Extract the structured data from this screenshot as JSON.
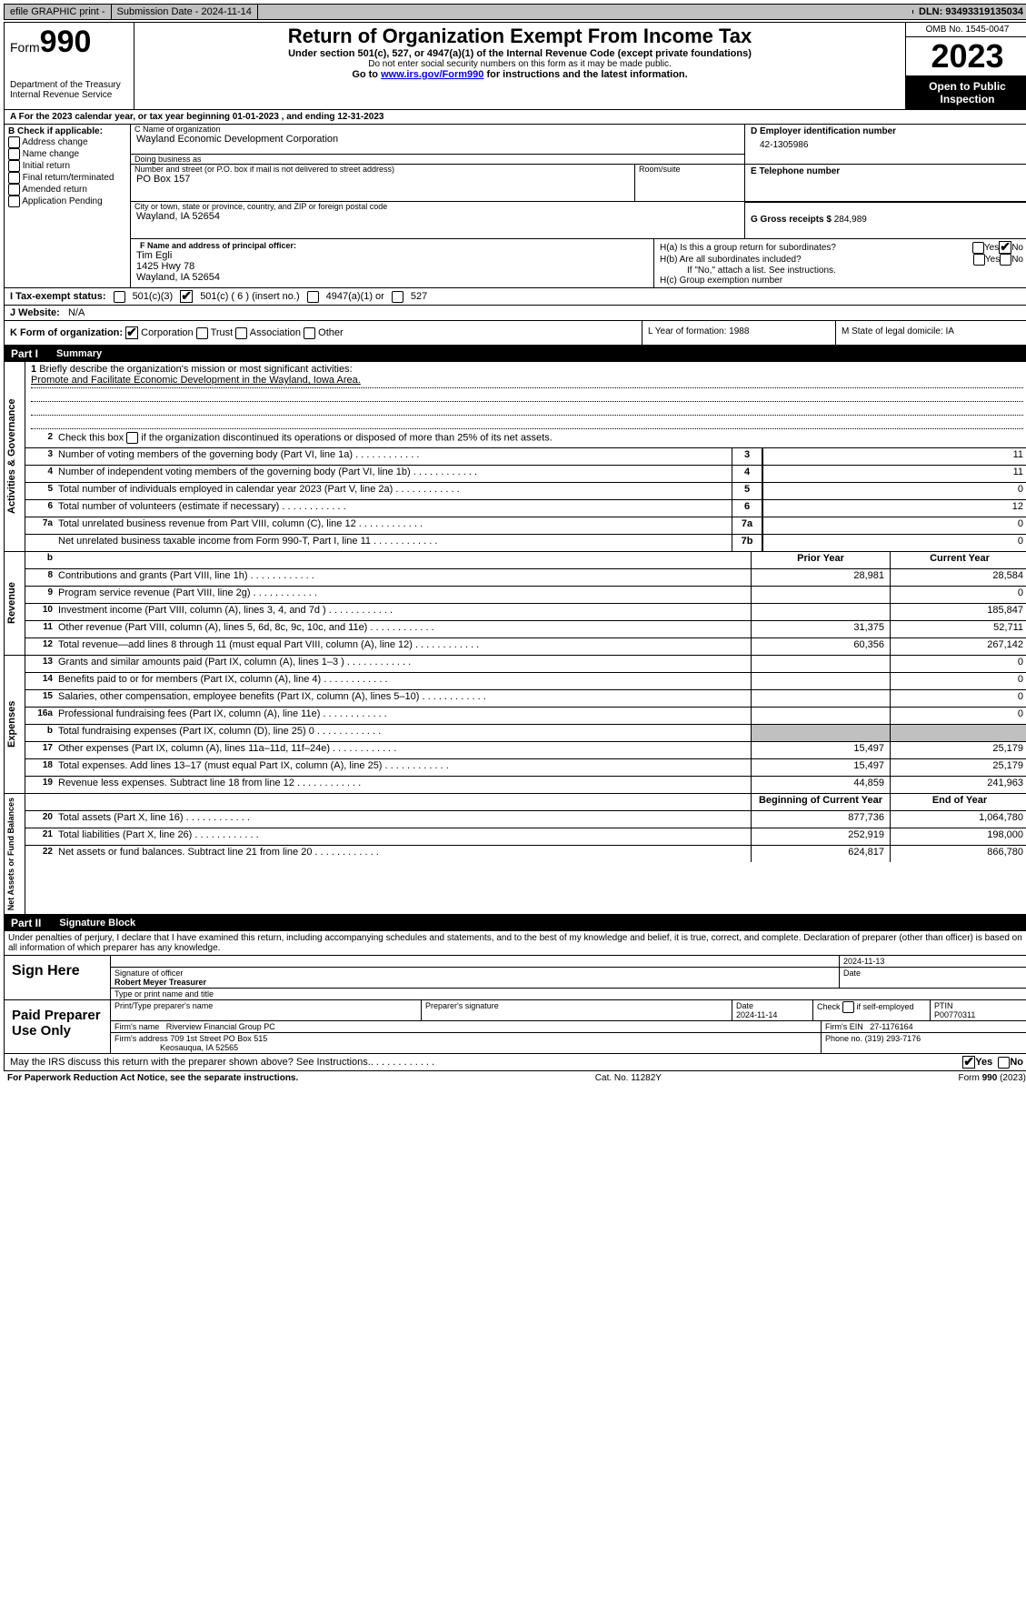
{
  "topbar": {
    "efile": "efile GRAPHIC print -",
    "submission_label": "Submission Date - 2024-11-14",
    "dln_label": "DLN: 93493319135034"
  },
  "header": {
    "form_prefix": "Form",
    "form_number": "990",
    "dept": "Department of the Treasury\nInternal Revenue Service",
    "title": "Return of Organization Exempt From Income Tax",
    "subtitle": "Under section 501(c), 527, or 4947(a)(1) of the Internal Revenue Code (except private foundations)",
    "note1": "Do not enter social security numbers on this form as it may be made public.",
    "note2_pre": "Go to ",
    "note2_link": "www.irs.gov/Form990",
    "note2_post": " for instructions and the latest information.",
    "omb": "OMB No. 1545-0047",
    "year": "2023",
    "inspection": "Open to Public Inspection"
  },
  "rowA": "A  For the 2023 calendar year, or tax year beginning 01-01-2023   , and ending 12-31-2023",
  "boxB": {
    "heading": "B Check if applicable:",
    "items": [
      "Address change",
      "Name change",
      "Initial return",
      "Final return/terminated",
      "Amended return",
      "Application Pending"
    ]
  },
  "boxC": {
    "name_label": "C Name of organization",
    "name": "Wayland Economic Development Corporation",
    "dba_label": "Doing business as",
    "dba": "",
    "street_label": "Number and street (or P.O. box if mail is not delivered to street address)",
    "street": "PO Box 157",
    "room_label": "Room/suite",
    "city_label": "City or town, state or province, country, and ZIP or foreign postal code",
    "city": "Wayland, IA  52654"
  },
  "boxD": {
    "label": "D Employer identification number",
    "value": "42-1305986"
  },
  "boxE": {
    "label": "E Telephone number",
    "value": ""
  },
  "boxG": {
    "label": "G Gross receipts $ ",
    "value": "284,989"
  },
  "boxF": {
    "label": "F  Name and address of principal officer:",
    "lines": [
      "Tim Egli",
      "1425 Hwy 78",
      "Wayland, IA  52654"
    ]
  },
  "boxH": {
    "ha_label": "H(a)  Is this a group return for subordinates?",
    "ha_yes": "Yes",
    "ha_no": "No",
    "hb_label": "H(b)  Are all subordinates included?",
    "hb_yes": "Yes",
    "hb_no": "No",
    "hb_note": "If \"No,\" attach a list. See instructions.",
    "hc_label": "H(c)  Group exemption number"
  },
  "taxStatus": {
    "label": "I  Tax-exempt status:",
    "opt1": "501(c)(3)",
    "opt2_pre": "501(c) (",
    "opt2_num": "6",
    "opt2_post": ") (insert no.)",
    "opt3": "4947(a)(1) or",
    "opt4": "527",
    "checked": 2
  },
  "website": {
    "label": "J  Website:",
    "value": "N/A"
  },
  "rowK": {
    "label": "K Form of organization:",
    "opts": [
      "Corporation",
      "Trust",
      "Association",
      "Other"
    ],
    "checked": 0,
    "L": "L Year of formation: 1988",
    "M": "M State of legal domicile: IA"
  },
  "parts": {
    "p1": "Part I",
    "p1_title": "Summary",
    "p2": "Part II",
    "p2_title": "Signature Block"
  },
  "section_labels": {
    "gov": "Activities & Governance",
    "rev": "Revenue",
    "exp": "Expenses",
    "net": "Net Assets or Fund Balances"
  },
  "summary": {
    "line1": {
      "num": "1",
      "text": "Briefly describe the organization's mission or most significant activities:",
      "mission": "Promote and Facilitate Economic Development in the Wayland, Iowa Area."
    },
    "line2": {
      "num": "2",
      "text": "Check this box        if the organization discontinued its operations or disposed of more than 25% of its net assets."
    },
    "rowsGov": [
      {
        "n": "3",
        "desc": "Number of voting members of the governing body (Part VI, line 1a)",
        "ln": "3",
        "val": "11"
      },
      {
        "n": "4",
        "desc": "Number of independent voting members of the governing body (Part VI, line 1b)",
        "ln": "4",
        "val": "11"
      },
      {
        "n": "5",
        "desc": "Total number of individuals employed in calendar year 2023 (Part V, line 2a)",
        "ln": "5",
        "val": "0"
      },
      {
        "n": "6",
        "desc": "Total number of volunteers (estimate if necessary)",
        "ln": "6",
        "val": "12"
      },
      {
        "n": "7a",
        "desc": "Total unrelated business revenue from Part VIII, column (C), line 12",
        "ln": "7a",
        "val": "0"
      },
      {
        "n": "",
        "desc": "Net unrelated business taxable income from Form 990-T, Part I, line 11",
        "ln": "7b",
        "val": "0"
      }
    ],
    "colHeaders": {
      "b": "b",
      "prior": "Prior Year",
      "current": "Current Year"
    },
    "rowsRev": [
      {
        "n": "8",
        "desc": "Contributions and grants (Part VIII, line 1h)",
        "prior": "28,981",
        "curr": "28,584"
      },
      {
        "n": "9",
        "desc": "Program service revenue (Part VIII, line 2g)",
        "prior": "",
        "curr": "0"
      },
      {
        "n": "10",
        "desc": "Investment income (Part VIII, column (A), lines 3, 4, and 7d )",
        "prior": "",
        "curr": "185,847"
      },
      {
        "n": "11",
        "desc": "Other revenue (Part VIII, column (A), lines 5, 6d, 8c, 9c, 10c, and 11e)",
        "prior": "31,375",
        "curr": "52,711"
      },
      {
        "n": "12",
        "desc": "Total revenue—add lines 8 through 11 (must equal Part VIII, column (A), line 12)",
        "prior": "60,356",
        "curr": "267,142"
      }
    ],
    "rowsExp": [
      {
        "n": "13",
        "desc": "Grants and similar amounts paid (Part IX, column (A), lines 1–3 )",
        "prior": "",
        "curr": "0"
      },
      {
        "n": "14",
        "desc": "Benefits paid to or for members (Part IX, column (A), line 4)",
        "prior": "",
        "curr": "0"
      },
      {
        "n": "15",
        "desc": "Salaries, other compensation, employee benefits (Part IX, column (A), lines 5–10)",
        "prior": "",
        "curr": "0"
      },
      {
        "n": "16a",
        "desc": "Professional fundraising fees (Part IX, column (A), line 11e)",
        "prior": "",
        "curr": "0"
      },
      {
        "n": "b",
        "desc": "Total fundraising expenses (Part IX, column (D), line 25) 0",
        "prior": "SHADE",
        "curr": "SHADE"
      },
      {
        "n": "17",
        "desc": "Other expenses (Part IX, column (A), lines 11a–11d, 11f–24e)",
        "prior": "15,497",
        "curr": "25,179"
      },
      {
        "n": "18",
        "desc": "Total expenses. Add lines 13–17 (must equal Part IX, column (A), line 25)",
        "prior": "15,497",
        "curr": "25,179"
      },
      {
        "n": "19",
        "desc": "Revenue less expenses. Subtract line 18 from line 12",
        "prior": "44,859",
        "curr": "241,963"
      }
    ],
    "netHeaders": {
      "begin": "Beginning of Current Year",
      "end": "End of Year"
    },
    "rowsNet": [
      {
        "n": "20",
        "desc": "Total assets (Part X, line 16)",
        "prior": "877,736",
        "curr": "1,064,780"
      },
      {
        "n": "21",
        "desc": "Total liabilities (Part X, line 26)",
        "prior": "252,919",
        "curr": "198,000"
      },
      {
        "n": "22",
        "desc": "Net assets or fund balances. Subtract line 21 from line 20",
        "prior": "624,817",
        "curr": "866,780"
      }
    ]
  },
  "penalties": "Under penalties of perjury, I declare that I have examined this return, including accompanying schedules and statements, and to the best of my knowledge and belief, it is true, correct, and complete. Declaration of preparer (other than officer) is based on all information of which preparer has any knowledge.",
  "sign": {
    "here": "Sign Here",
    "sig_date": "2024-11-13",
    "sig_officer_label": "Signature of officer",
    "officer_name": "Robert Meyer Treasurer",
    "officer_type_label": "Type or print name and title",
    "date_label": "Date",
    "paid": "Paid Preparer Use Only",
    "prep_name_label": "Print/Type preparer's name",
    "prep_sig_label": "Preparer's signature",
    "prep_date_label": "Date",
    "prep_date": "2024-11-14",
    "self_emp": "Check        if self-employed",
    "ptin_label": "PTIN",
    "ptin": "P00770311",
    "firm_name_label": "Firm's name",
    "firm_name": "Riverview Financial Group PC",
    "firm_ein_label": "Firm's EIN",
    "firm_ein": "27-1176164",
    "firm_addr_label": "Firm's address",
    "firm_addr1": "709 1st Street PO Box 515",
    "firm_addr2": "Keosauqua, IA  52565",
    "phone_label": "Phone no.",
    "phone": "(319) 293-7176"
  },
  "discuss": {
    "text": "May the IRS discuss this return with the preparer shown above? See Instructions.",
    "yes": "Yes",
    "no": "No"
  },
  "footer": {
    "left": "For Paperwork Reduction Act Notice, see the separate instructions.",
    "mid": "Cat. No. 11282Y",
    "right": "Form 990 (2023)"
  }
}
